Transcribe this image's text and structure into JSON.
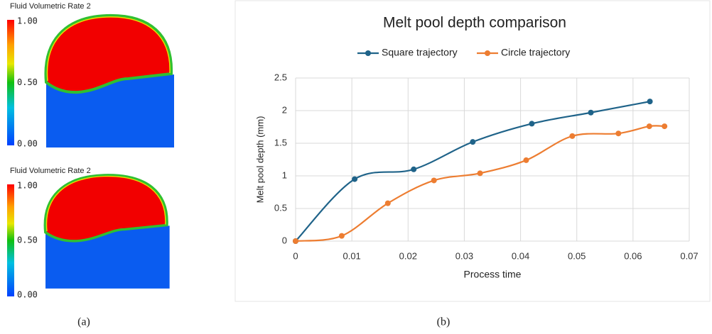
{
  "figure_a": {
    "caption": "(a)",
    "plots": [
      {
        "title": "Fluid Volumetric Rate 2",
        "colorbar_labels": [
          "1.00",
          "0.50",
          "0.00"
        ]
      },
      {
        "title": "Fluid Volumetric Rate 2",
        "colorbar_labels": [
          "1.00",
          "0.50",
          "0.00"
        ]
      }
    ]
  },
  "figure_b": {
    "caption": "(b)"
  },
  "chart_data": {
    "type": "line",
    "title": "Melt pool depth comparison",
    "xlabel": "Process time",
    "ylabel": "Melt pool depth (mm)",
    "xlim": [
      0,
      0.07
    ],
    "xticks": [
      0,
      0.01,
      0.02,
      0.03,
      0.04,
      0.05,
      0.06,
      0.07
    ],
    "ylim": [
      0,
      2.5
    ],
    "yticks": [
      0,
      0.5,
      1,
      1.5,
      2,
      2.5
    ],
    "grid": true,
    "smooth": true,
    "legend": "top",
    "series": [
      {
        "name": "Square trajectory",
        "color": "#1f6389",
        "x": [
          0,
          0.0105,
          0.021,
          0.0315,
          0.042,
          0.0525,
          0.063
        ],
        "values": [
          0,
          0.95,
          1.1,
          1.52,
          1.8,
          1.97,
          2.14
        ]
      },
      {
        "name": "Circle trajectory",
        "color": "#ed7d31",
        "x": [
          0,
          0.0082,
          0.0164,
          0.0246,
          0.0328,
          0.041,
          0.0492,
          0.0574,
          0.0629,
          0.0656
        ],
        "values": [
          0,
          0.08,
          0.58,
          0.93,
          1.04,
          1.24,
          1.61,
          1.65,
          1.76,
          1.76
        ]
      }
    ]
  }
}
